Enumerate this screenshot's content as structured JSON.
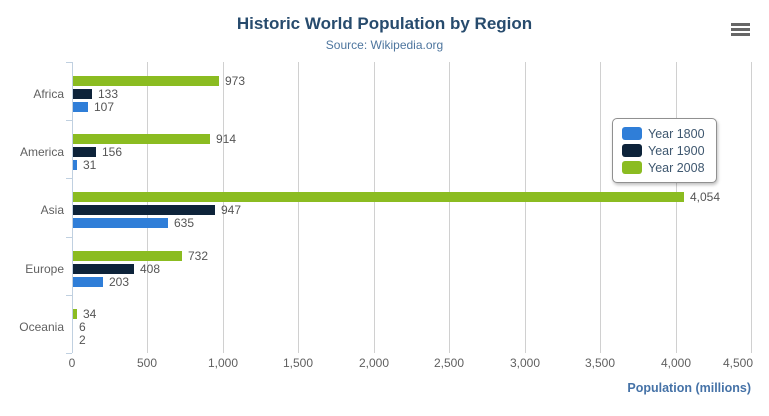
{
  "header": {
    "title": "Historic World Population by Region",
    "subtitle": "Source: Wikipedia.org",
    "menu_icon": "hamburger-menu-icon"
  },
  "chart_data": {
    "type": "bar",
    "orientation": "horizontal",
    "title": "Historic World Population by Region",
    "subtitle": "Source: Wikipedia.org",
    "categories": [
      "Africa",
      "America",
      "Asia",
      "Europe",
      "Oceania"
    ],
    "series": [
      {
        "name": "Year 1800",
        "color": "#2f7ed8",
        "values": [
          107,
          31,
          635,
          203,
          2
        ],
        "labels": [
          "107",
          "31",
          "635",
          "203",
          "2"
        ]
      },
      {
        "name": "Year 1900",
        "color": "#0d233a",
        "values": [
          133,
          156,
          947,
          408,
          6
        ],
        "labels": [
          "133",
          "156",
          "947",
          "408",
          "6"
        ]
      },
      {
        "name": "Year 2008",
        "color": "#8bbc21",
        "values": [
          973,
          914,
          4054,
          732,
          34
        ],
        "labels": [
          "973",
          "914",
          "4,054",
          "732",
          "34"
        ]
      }
    ],
    "bar_display_order_top_to_bottom": [
      "Year 2008",
      "Year 1900",
      "Year 1800"
    ],
    "xlabel": "Population (millions)",
    "ylabel": "",
    "xlim": [
      0,
      4500
    ],
    "xticks": {
      "values": [
        0,
        500,
        1000,
        1500,
        2000,
        2500,
        3000,
        3500,
        4000,
        4500
      ],
      "labels": [
        "0",
        "500",
        "1,000",
        "1,500",
        "2,000",
        "2,500",
        "3,000",
        "3,500",
        "4,000",
        "4,500"
      ]
    },
    "grid": "vertical-on",
    "legend": {
      "position": "right",
      "border_color": "#909090",
      "text_color": "#3e576f"
    },
    "colors": {
      "grid_line": "#d0d0d0",
      "axis_line": "#c0d0e0",
      "title": "#274b6d",
      "subtitle": "#4d759e",
      "tick_label": "#606060",
      "category_label": "#606060",
      "value_label": "#555555",
      "axis_title": "#4572a7",
      "menu_icon": "#666666",
      "background": "#ffffff"
    }
  }
}
